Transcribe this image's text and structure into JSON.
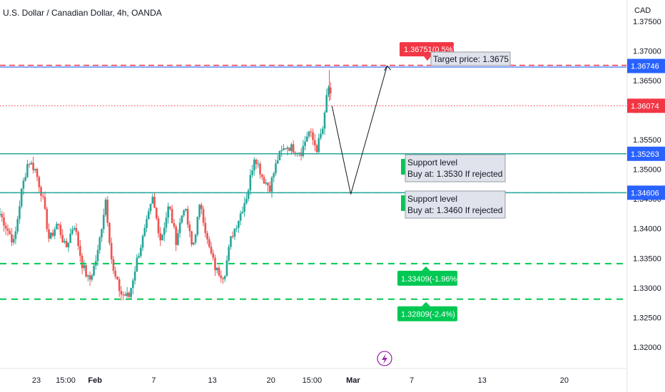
{
  "header": {
    "title": "U.S. Dollar / Canadian Dollar, 4h, OANDA",
    "currency": "CAD"
  },
  "colors": {
    "up": "#26a69a",
    "down": "#ef5350",
    "support": "#26a69a",
    "green_dash": "#00c853",
    "target_red": "#f23645",
    "target_blue": "#2962ff",
    "current_red": "#f23645",
    "label_blue": "#2962ff",
    "label_green": "#00c853"
  },
  "icons": {
    "bottom_marker": "lightning-bolt-icon"
  },
  "chart_data": {
    "type": "candlestick",
    "title": "U.S. Dollar / Canadian Dollar, 4h, OANDA",
    "ylim": [
      1.3165,
      1.3786
    ],
    "y_ticks": [
      {
        "value": 1.375,
        "label": "1.37500"
      },
      {
        "value": 1.37,
        "label": "1.37000"
      },
      {
        "value": 1.365,
        "label": "1.36500"
      },
      {
        "value": 1.36,
        "label": "1.36000"
      },
      {
        "value": 1.355,
        "label": "1.35500"
      },
      {
        "value": 1.35,
        "label": "1.35000"
      },
      {
        "value": 1.345,
        "label": "1.34500"
      },
      {
        "value": 1.34,
        "label": "1.34000"
      },
      {
        "value": 1.335,
        "label": "1.33500"
      },
      {
        "value": 1.33,
        "label": "1.33000"
      },
      {
        "value": 1.325,
        "label": "1.32500"
      },
      {
        "value": 1.32,
        "label": "1.32000"
      }
    ],
    "x_ticks": [
      {
        "label": "23",
        "day": 2
      },
      {
        "label": "15:00",
        "day": 4.5
      },
      {
        "label": "Feb",
        "day": 7
      },
      {
        "label": "7",
        "day": 12
      },
      {
        "label": "13",
        "day": 17
      },
      {
        "label": "20",
        "day": 22
      },
      {
        "label": "15:00",
        "day": 25.5
      },
      {
        "label": "Mar",
        "day": 29
      },
      {
        "label": "7",
        "day": 34
      },
      {
        "label": "13",
        "day": 40
      },
      {
        "label": "20",
        "day": 47
      }
    ],
    "x_range_days": [
      -1.1,
      52.3
    ],
    "key_points": [
      [
        -1.1,
        1.3425
      ],
      [
        0.1,
        1.3375
      ],
      [
        0.7,
        1.346
      ],
      [
        1.3,
        1.3515
      ],
      [
        1.9,
        1.35
      ],
      [
        2.5,
        1.3455
      ],
      [
        3.1,
        1.338
      ],
      [
        3.8,
        1.341
      ],
      [
        4.5,
        1.3365
      ],
      [
        5.2,
        1.341
      ],
      [
        5.9,
        1.334
      ],
      [
        6.5,
        1.331
      ],
      [
        7.2,
        1.3355
      ],
      [
        7.9,
        1.345
      ],
      [
        8.5,
        1.333
      ],
      [
        9.2,
        1.329
      ],
      [
        9.9,
        1.3285
      ],
      [
        10.6,
        1.335
      ],
      [
        11.3,
        1.34
      ],
      [
        11.9,
        1.345
      ],
      [
        12.6,
        1.338
      ],
      [
        13.3,
        1.344
      ],
      [
        13.9,
        1.338
      ],
      [
        14.6,
        1.344
      ],
      [
        15.3,
        1.3365
      ],
      [
        16.0,
        1.3445
      ],
      [
        16.6,
        1.3375
      ],
      [
        17.3,
        1.333
      ],
      [
        18.0,
        1.332
      ],
      [
        18.6,
        1.3385
      ],
      [
        19.3,
        1.342
      ],
      [
        20.0,
        1.346
      ],
      [
        20.6,
        1.3525
      ],
      [
        21.3,
        1.3485
      ],
      [
        21.9,
        1.347
      ],
      [
        22.6,
        1.352
      ],
      [
        23.3,
        1.354
      ],
      [
        23.9,
        1.3535
      ],
      [
        24.6,
        1.353
      ],
      [
        25.2,
        1.3565
      ],
      [
        25.9,
        1.3535
      ],
      [
        26.5,
        1.3575
      ],
      [
        26.85,
        1.3645
      ],
      [
        27.2,
        1.3607
      ]
    ],
    "series": [
      {
        "name": "Support level",
        "kind": "horizontal",
        "value": 1.35263,
        "label": "1.35263",
        "style": "solid"
      },
      {
        "name": "Support level",
        "kind": "horizontal",
        "value": 1.34606,
        "label": "1.34606",
        "style": "solid"
      },
      {
        "name": "Target price",
        "kind": "horizontal",
        "value": 1.36746,
        "label": "1.36746",
        "style": "dashed"
      },
      {
        "name": "",
        "kind": "horizontal",
        "value": 1.36074,
        "label": "1.36074",
        "style": "dotted"
      },
      {
        "name": "",
        "kind": "horizontal",
        "value": 1.33409,
        "label": "1.33409(-1.96%)",
        "style": "dashed"
      },
      {
        "name": "",
        "kind": "horizontal",
        "value": 1.32809,
        "label": "1.32809(-2.4%)",
        "style": "dashed"
      }
    ],
    "projection_path": [
      [
        27.2,
        1.3607
      ],
      [
        28.8,
        1.3458
      ],
      [
        31.9,
        1.3675
      ]
    ],
    "annotations": {
      "target_badge": {
        "text": "1.36751(0.5%)",
        "value": 1.36751
      },
      "target_text": "Target price: 1.3675",
      "support1": {
        "line1": "Support level",
        "line2": "Buy at: 1.3530 If rejected"
      },
      "support2": {
        "line1": "Support level",
        "line2": "Buy at: 1.3460 If rejected"
      },
      "green_labels": [
        "1.33409(-1.96%)",
        "1.32809(-2.4%)"
      ]
    }
  }
}
